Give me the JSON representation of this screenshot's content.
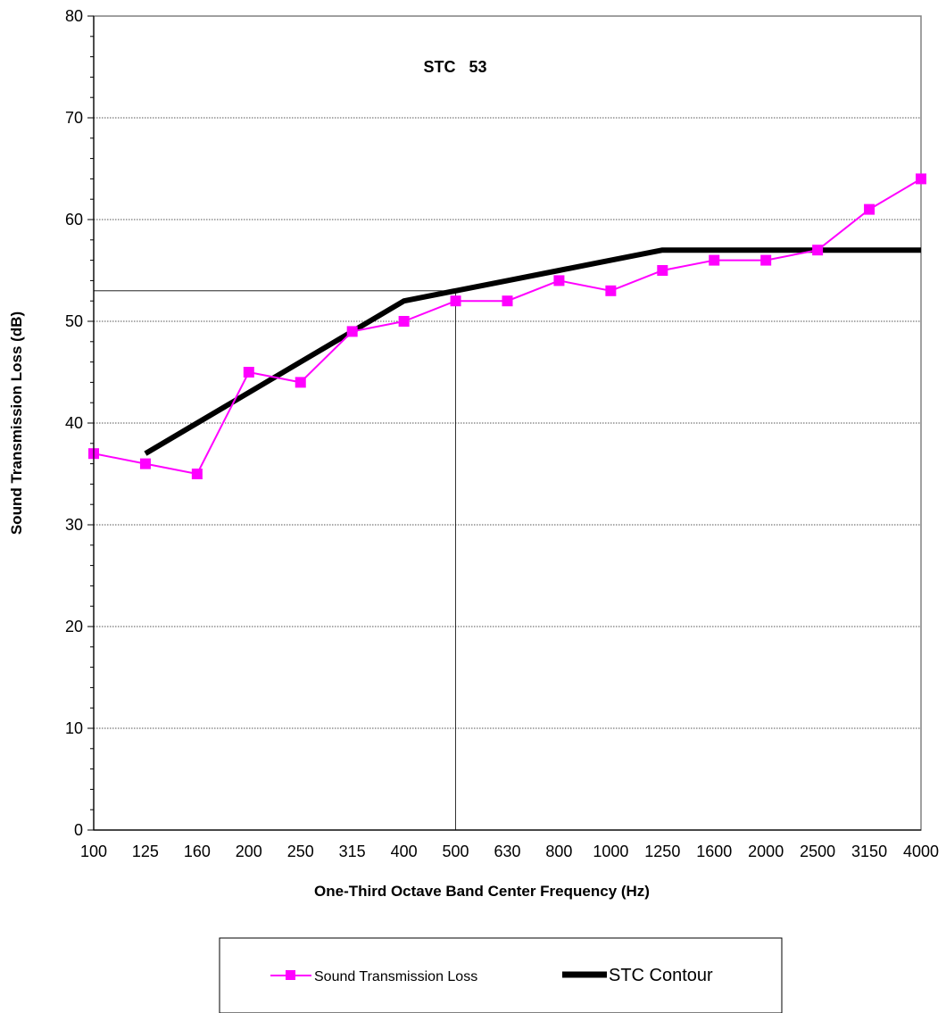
{
  "chart_data": {
    "type": "line",
    "title": "",
    "annotation": "STC   53",
    "xlabel": "One-Third Octave Band Center Frequency (Hz)",
    "ylabel": "Sound Transmission Loss (dB)",
    "categories": [
      "100",
      "125",
      "160",
      "200",
      "250",
      "315",
      "400",
      "500",
      "630",
      "800",
      "1000",
      "1250",
      "1600",
      "2000",
      "2500",
      "3150",
      "4000"
    ],
    "ylim": [
      0,
      80
    ],
    "yticks": [
      0,
      10,
      20,
      30,
      40,
      50,
      60,
      70,
      80
    ],
    "grid": "horizontal dotted",
    "stc_value": 53,
    "stc_reference_frequency": "500",
    "legend_position": "bottom",
    "series": [
      {
        "name": "Sound Transmission Loss",
        "color": "#ff00ff",
        "marker": "square",
        "values": [
          37,
          36,
          35,
          45,
          44,
          49,
          50,
          52,
          52,
          54,
          53,
          55,
          56,
          56,
          57,
          61,
          64
        ]
      },
      {
        "name": "STC Contour",
        "color": "#000000",
        "marker": "none",
        "values": [
          null,
          37,
          40,
          43,
          46,
          49,
          52,
          53,
          54,
          55,
          56,
          57,
          57,
          57,
          57,
          57,
          57
        ]
      }
    ]
  }
}
